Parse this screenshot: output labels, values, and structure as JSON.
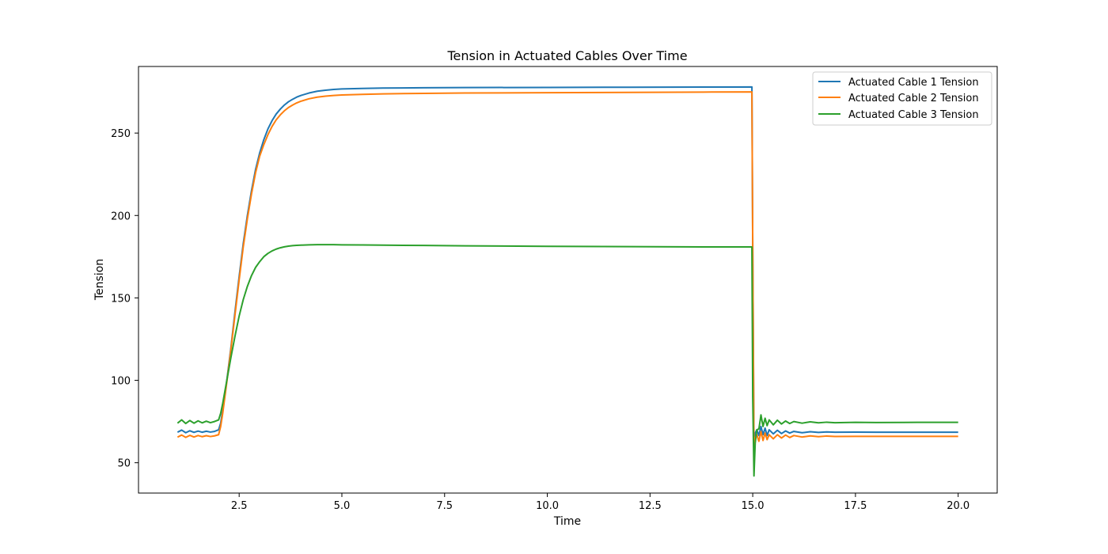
{
  "chart_data": {
    "type": "line",
    "title": "Tension in Actuated Cables Over Time",
    "xlabel": "Time",
    "ylabel": "Tension",
    "xlim": [
      0.05,
      20.95
    ],
    "ylim": [
      31.6,
      290.4
    ],
    "xticks": [
      2.5,
      5.0,
      7.5,
      10.0,
      12.5,
      15.0,
      17.5,
      20.0
    ],
    "xtick_labels": [
      "2.5",
      "5.0",
      "7.5",
      "10.0",
      "12.5",
      "15.0",
      "17.5",
      "20.0"
    ],
    "yticks": [
      50,
      100,
      150,
      200,
      250
    ],
    "ytick_labels": [
      "50",
      "100",
      "150",
      "200",
      "250"
    ],
    "grid": false,
    "legend_position": "top-right",
    "series": [
      {
        "name": "Actuated Cable 1 Tension",
        "color": "#1f77b4",
        "x": [
          1.0,
          1.1,
          1.2,
          1.3,
          1.4,
          1.5,
          1.6,
          1.7,
          1.8,
          1.9,
          2.0,
          2.05,
          2.1,
          2.2,
          2.3,
          2.4,
          2.5,
          2.6,
          2.7,
          2.8,
          2.9,
          3.0,
          3.1,
          3.2,
          3.3,
          3.4,
          3.5,
          3.6,
          3.7,
          3.8,
          3.9,
          4.0,
          4.2,
          4.4,
          4.6,
          4.8,
          5.0,
          5.5,
          6.0,
          7.0,
          8.0,
          10.0,
          12.0,
          14.0,
          14.98,
          15.0,
          15.03,
          15.06,
          15.1,
          15.15,
          15.2,
          15.25,
          15.3,
          15.35,
          15.4,
          15.5,
          15.6,
          15.7,
          15.8,
          15.9,
          16.0,
          16.2,
          16.4,
          16.6,
          16.8,
          17.0,
          17.5,
          18.0,
          19.0,
          20.0
        ],
        "y": [
          68.5,
          69.8,
          68.2,
          69.4,
          68.4,
          69.2,
          68.5,
          69.1,
          68.6,
          69.0,
          70.0,
          74.0,
          82.0,
          100.0,
          120.0,
          142.0,
          163.0,
          183.0,
          200.0,
          215.0,
          228.0,
          238.0,
          246.0,
          252.5,
          257.5,
          261.5,
          264.5,
          267.0,
          269.0,
          270.5,
          271.8,
          272.8,
          274.3,
          275.4,
          276.0,
          276.5,
          276.8,
          277.1,
          277.3,
          277.5,
          277.6,
          277.7,
          277.8,
          277.9,
          278.0,
          180.0,
          61.0,
          68.0,
          70.0,
          66.5,
          72.0,
          67.0,
          71.0,
          66.5,
          70.0,
          67.5,
          69.7,
          67.7,
          69.3,
          68.0,
          69.0,
          68.2,
          68.8,
          68.4,
          68.7,
          68.5,
          68.6,
          68.5,
          68.5,
          68.5
        ]
      },
      {
        "name": "Actuated Cable 2 Tension",
        "color": "#ff7f0e",
        "x": [
          1.0,
          1.1,
          1.2,
          1.3,
          1.4,
          1.5,
          1.6,
          1.7,
          1.8,
          1.9,
          2.0,
          2.05,
          2.1,
          2.2,
          2.3,
          2.4,
          2.5,
          2.6,
          2.7,
          2.8,
          2.9,
          3.0,
          3.1,
          3.2,
          3.3,
          3.4,
          3.5,
          3.6,
          3.7,
          3.8,
          3.9,
          4.0,
          4.2,
          4.4,
          4.6,
          4.8,
          5.0,
          5.5,
          6.0,
          7.0,
          8.0,
          10.0,
          12.0,
          14.0,
          14.98,
          15.0,
          15.03,
          15.06,
          15.1,
          15.15,
          15.2,
          15.25,
          15.3,
          15.35,
          15.4,
          15.5,
          15.6,
          15.7,
          15.8,
          15.9,
          16.0,
          16.2,
          16.4,
          16.6,
          16.8,
          17.0,
          17.5,
          18.0,
          19.0,
          20.0
        ],
        "y": [
          65.5,
          66.8,
          65.4,
          66.6,
          65.6,
          66.5,
          65.8,
          66.4,
          65.9,
          66.3,
          67.0,
          72.0,
          80.0,
          99.0,
          119.0,
          140.0,
          161.0,
          181.0,
          198.0,
          213.0,
          226.0,
          236.0,
          243.0,
          249.0,
          254.0,
          258.0,
          261.0,
          263.5,
          265.5,
          267.0,
          268.3,
          269.3,
          270.8,
          271.8,
          272.4,
          272.8,
          273.1,
          273.5,
          273.8,
          274.1,
          274.3,
          274.5,
          274.7,
          274.9,
          275.0,
          180.0,
          58.0,
          65.0,
          67.0,
          63.0,
          69.0,
          63.5,
          68.0,
          64.0,
          67.0,
          64.5,
          67.0,
          65.0,
          66.8,
          65.3,
          66.5,
          65.6,
          66.3,
          65.8,
          66.2,
          65.9,
          66.0,
          66.0,
          66.0,
          66.0
        ]
      },
      {
        "name": "Actuated Cable 3 Tension",
        "color": "#2ca02c",
        "x": [
          1.0,
          1.1,
          1.2,
          1.3,
          1.4,
          1.5,
          1.6,
          1.7,
          1.8,
          1.9,
          2.0,
          2.05,
          2.1,
          2.2,
          2.3,
          2.4,
          2.5,
          2.6,
          2.7,
          2.8,
          2.9,
          3.0,
          3.1,
          3.2,
          3.3,
          3.4,
          3.5,
          3.6,
          3.7,
          3.8,
          3.9,
          4.0,
          4.2,
          4.4,
          4.6,
          4.8,
          5.0,
          5.5,
          6.0,
          7.0,
          8.0,
          10.0,
          12.0,
          14.0,
          14.98,
          15.0,
          15.03,
          15.06,
          15.1,
          15.15,
          15.2,
          15.25,
          15.3,
          15.35,
          15.4,
          15.5,
          15.6,
          15.7,
          15.8,
          15.9,
          16.0,
          16.2,
          16.4,
          16.6,
          16.8,
          17.0,
          17.5,
          18.0,
          19.0,
          20.0
        ],
        "y": [
          74.0,
          76.0,
          73.8,
          75.6,
          74.0,
          75.4,
          74.2,
          75.2,
          74.3,
          75.0,
          76.0,
          80.0,
          86.0,
          100.0,
          114.0,
          127.0,
          139.0,
          149.0,
          157.0,
          163.5,
          168.5,
          172.0,
          175.0,
          177.0,
          178.5,
          179.6,
          180.4,
          181.0,
          181.4,
          181.7,
          181.9,
          182.0,
          182.2,
          182.3,
          182.3,
          182.3,
          182.2,
          182.1,
          182.0,
          181.8,
          181.6,
          181.3,
          181.1,
          180.9,
          180.9,
          90.0,
          42.0,
          62.0,
          70.0,
          70.5,
          79.0,
          72.0,
          77.0,
          72.5,
          76.0,
          73.0,
          75.8,
          73.5,
          75.3,
          73.8,
          75.0,
          74.0,
          74.8,
          74.2,
          74.6,
          74.3,
          74.5,
          74.4,
          74.5,
          74.5
        ]
      }
    ]
  }
}
